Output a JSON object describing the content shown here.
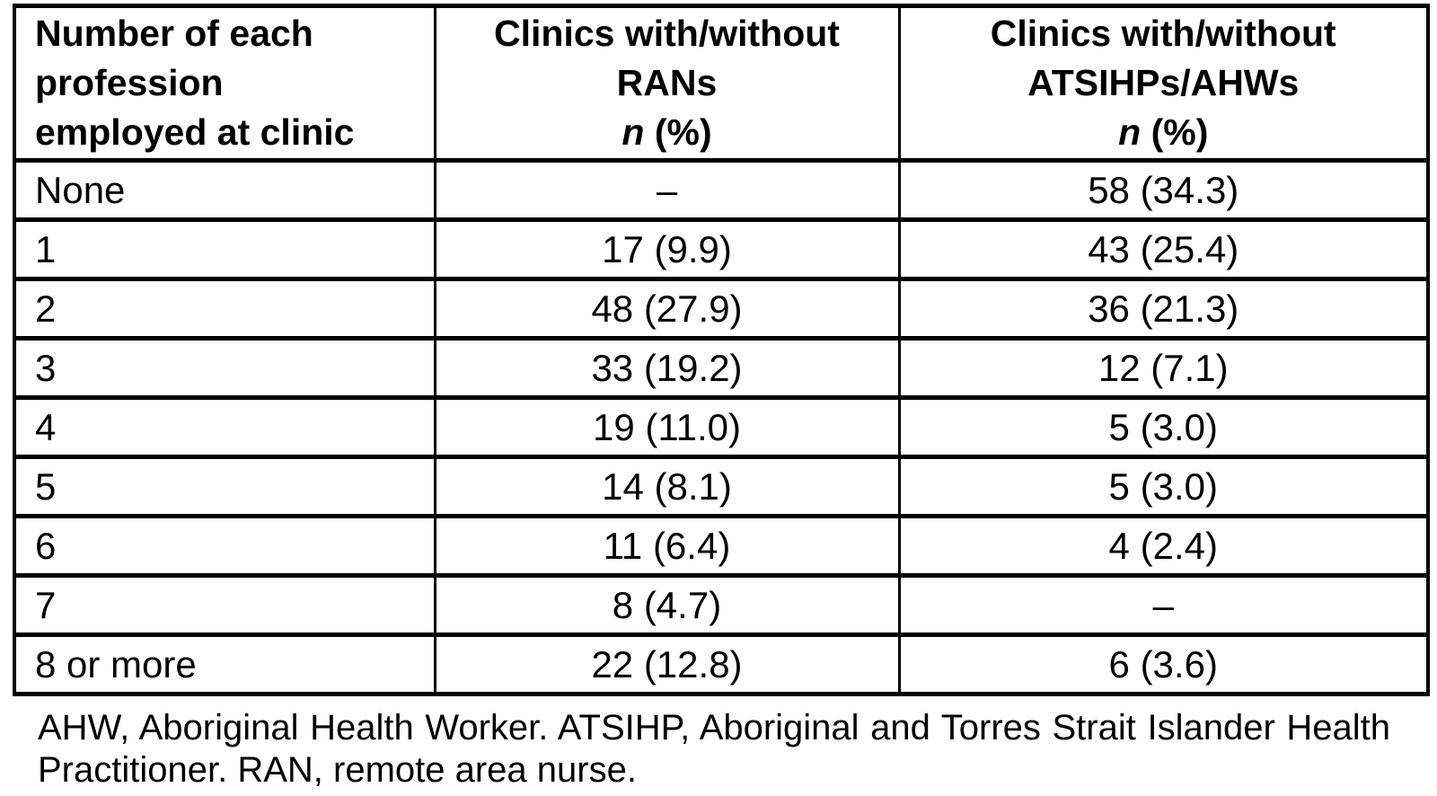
{
  "table": {
    "header": {
      "col1": {
        "line1": "Number of each",
        "line2": "profession",
        "line3": "employed at clinic"
      },
      "col2": {
        "line1": "Clinics with/without",
        "line2": "RANs",
        "n_italic": "n",
        "n_rest": " (%)"
      },
      "col3": {
        "line1": "Clinics with/without",
        "line2": "ATSIHPs/AHWs",
        "n_italic": "n",
        "n_rest": " (%)"
      }
    },
    "rows": [
      {
        "label": "None",
        "rans": "–",
        "atsihps": "58 (34.3)"
      },
      {
        "label": "1",
        "rans": "17 (9.9)",
        "atsihps": "43 (25.4)"
      },
      {
        "label": "2",
        "rans": "48 (27.9)",
        "atsihps": "36 (21.3)"
      },
      {
        "label": "3",
        "rans": "33 (19.2)",
        "atsihps": "12 (7.1)"
      },
      {
        "label": "4",
        "rans": "19 (11.0)",
        "atsihps": "5 (3.0)"
      },
      {
        "label": "5",
        "rans": "14 (8.1)",
        "atsihps": "5 (3.0)"
      },
      {
        "label": "6",
        "rans": "11 (6.4)",
        "atsihps": "4 (2.4)"
      },
      {
        "label": "7",
        "rans": "8 (4.7)",
        "atsihps": "–"
      },
      {
        "label": "8 or more",
        "rans": "22 (12.8)",
        "atsihps": "6 (3.6)"
      }
    ]
  },
  "footnote": {
    "text": "AHW, Aboriginal Health Worker. ATSIHP, Aboriginal and Torres Strait Islander Health Practitioner. RAN, remote area nurse."
  },
  "colors": {
    "text": "#000000",
    "border": "#000000",
    "background": "#ffffff"
  },
  "chart_data": {
    "type": "table",
    "title": "",
    "columns": [
      "Number of each profession employed at clinic",
      "Clinics with/without RANs n (%)",
      "Clinics with/without ATSIHPs/AHWs n (%)"
    ],
    "rows": [
      [
        "None",
        "–",
        "58 (34.3)"
      ],
      [
        "1",
        "17 (9.9)",
        "43 (25.4)"
      ],
      [
        "2",
        "48 (27.9)",
        "36 (21.3)"
      ],
      [
        "3",
        "33 (19.2)",
        "12 (7.1)"
      ],
      [
        "4",
        "19 (11.0)",
        "5 (3.0)"
      ],
      [
        "5",
        "14 (8.1)",
        "5 (3.0)"
      ],
      [
        "6",
        "11 (6.4)",
        "4 (2.4)"
      ],
      [
        "7",
        "8 (4.7)",
        "–"
      ],
      [
        "8 or more",
        "22 (12.8)",
        "6 (3.6)"
      ]
    ],
    "footnote": "AHW, Aboriginal Health Worker. ATSIHP, Aboriginal and Torres Strait Islander Health Practitioner. RAN, remote area nurse."
  }
}
